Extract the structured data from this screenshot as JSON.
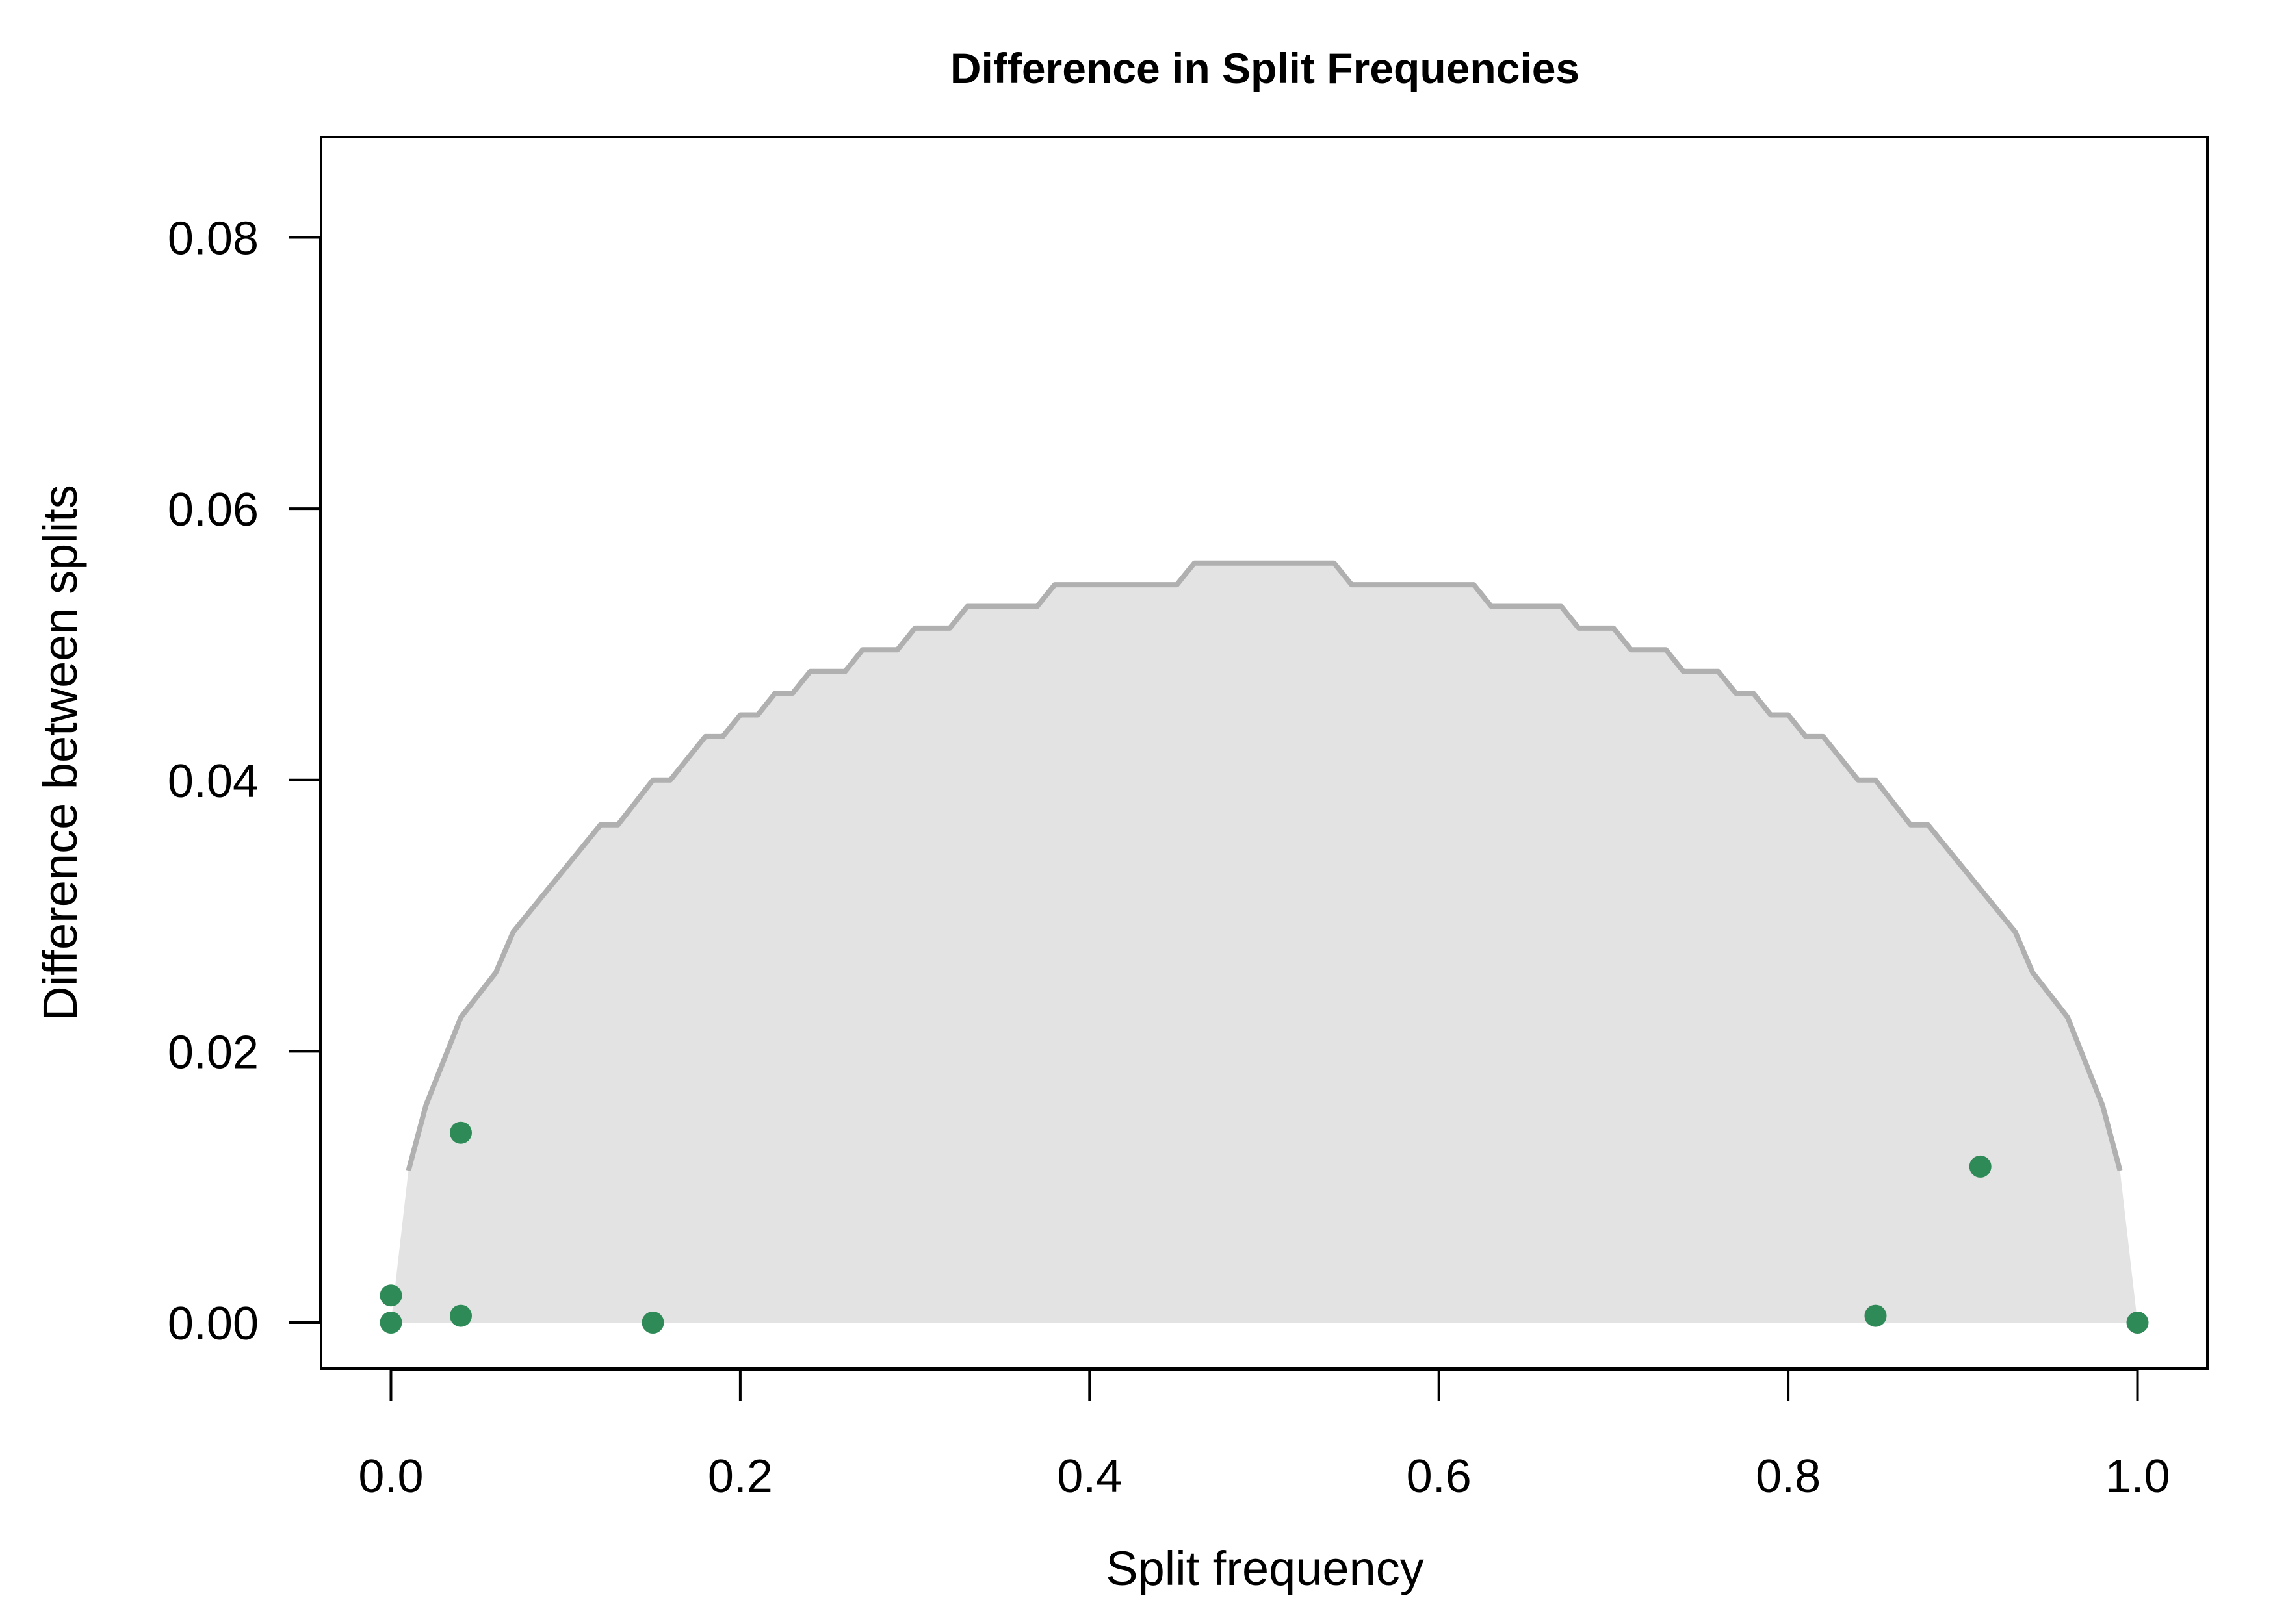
{
  "chart_data": {
    "type": "scatter",
    "title": "Difference in Split Frequencies",
    "xlabel": "Split frequency",
    "ylabel": "Difference between splits",
    "xlim": [
      -0.04,
      1.04
    ],
    "ylim": [
      -0.0034,
      0.0874
    ],
    "x_ticks": [
      0.0,
      0.2,
      0.4,
      0.6,
      0.8,
      1.0
    ],
    "x_tick_labels": [
      "0.0",
      "0.2",
      "0.4",
      "0.6",
      "0.8",
      "1.0"
    ],
    "y_ticks": [
      0.0,
      0.02,
      0.04,
      0.06,
      0.08
    ],
    "y_tick_labels": [
      "0.00",
      "0.02",
      "0.04",
      "0.06",
      "0.08"
    ],
    "grid": false,
    "colors": {
      "points": "#2e8b57",
      "threshold_line": "#b0b0b0",
      "threshold_fill": "#e3e3e3"
    },
    "threshold": {
      "x": [
        0.0,
        0.01,
        0.02,
        0.04,
        0.06,
        0.07,
        0.12,
        0.13,
        0.15,
        0.16,
        0.18,
        0.19,
        0.2,
        0.21,
        0.22,
        0.23,
        0.24,
        0.26,
        0.27,
        0.29,
        0.3,
        0.32,
        0.33,
        0.37,
        0.38,
        0.45,
        0.46,
        0.54,
        0.55,
        0.62,
        0.63,
        0.67,
        0.68,
        0.7,
        0.71,
        0.73,
        0.74,
        0.76,
        0.77,
        0.78,
        0.79,
        0.8,
        0.81,
        0.82,
        0.84,
        0.85,
        0.87,
        0.88,
        0.93,
        0.94,
        0.96,
        0.98,
        0.99,
        1.0
      ],
      "y": [
        0.0,
        0.0112,
        0.016,
        0.0225,
        0.0258,
        0.0288,
        0.0367,
        0.0367,
        0.04,
        0.04,
        0.0432,
        0.0432,
        0.0448,
        0.0448,
        0.0464,
        0.0464,
        0.048,
        0.048,
        0.0496,
        0.0496,
        0.0512,
        0.0512,
        0.0528,
        0.0528,
        0.0544,
        0.0544,
        0.056,
        0.056,
        0.0544,
        0.0544,
        0.0528,
        0.0528,
        0.0512,
        0.0512,
        0.0496,
        0.0496,
        0.048,
        0.048,
        0.0464,
        0.0464,
        0.0448,
        0.0448,
        0.0432,
        0.0432,
        0.04,
        0.04,
        0.0367,
        0.0367,
        0.0288,
        0.0258,
        0.0225,
        0.016,
        0.0112,
        0.0
      ]
    },
    "points": {
      "x": [
        0.0,
        0.0,
        0.04,
        0.04,
        0.15,
        0.85,
        0.91,
        1.0
      ],
      "y": [
        0.002,
        0.0,
        0.014,
        0.0005,
        0.0,
        0.0005,
        0.0115,
        0.0
      ]
    }
  }
}
